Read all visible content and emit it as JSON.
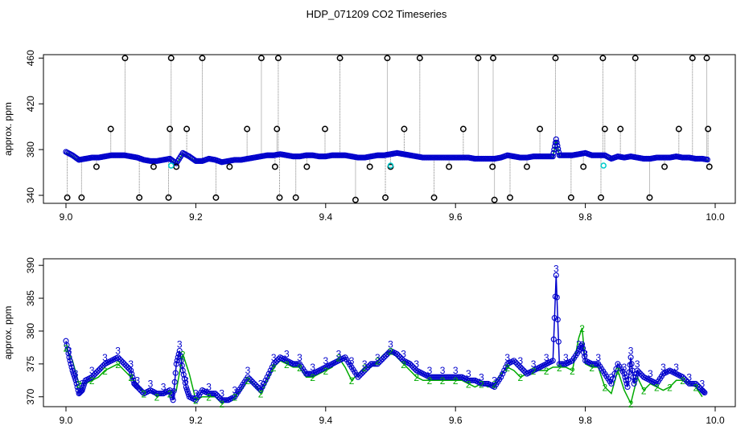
{
  "title": "HDP_071209  CO2 Timeseries",
  "colors": {
    "raw": "#000000",
    "series_blue": "#0000cc",
    "series_green": "#00aa00",
    "series_cyan": "#00cccc",
    "line_gray": "#808080"
  },
  "chart_data": [
    {
      "type": "scatter",
      "ylabel": "approx. ppm",
      "xlim": [
        9.0,
        10.0
      ],
      "ylim": [
        333,
        463
      ],
      "x_ticks": [
        "9.0",
        "9.2",
        "9.4",
        "9.6",
        "9.8",
        "10.0"
      ],
      "y_ticks": [
        "340",
        "380",
        "420",
        "460"
      ],
      "x_tick_values": [
        9.0,
        9.2,
        9.4,
        9.6,
        9.8,
        10.0
      ],
      "y_tick_values": [
        340,
        380,
        420,
        460
      ],
      "outliers_x": [
        9.002,
        9.024,
        9.047,
        9.069,
        9.091,
        9.113,
        9.135,
        9.158,
        9.16,
        9.162,
        9.17,
        9.186,
        9.21,
        9.231,
        9.252,
        9.279,
        9.301,
        9.322,
        9.325,
        9.327,
        9.329,
        9.354,
        9.371,
        9.399,
        9.422,
        9.446,
        9.468,
        9.492,
        9.495,
        9.5,
        9.521,
        9.545,
        9.567,
        9.59,
        9.612,
        9.635,
        9.657,
        9.658,
        9.66,
        9.684,
        9.71,
        9.73,
        9.754,
        9.778,
        9.797,
        9.824,
        9.827,
        9.83,
        9.854,
        9.877,
        9.899,
        9.922,
        9.944,
        9.965,
        9.987,
        9.989,
        9.991
      ],
      "outliers_y": [
        338,
        338,
        365,
        398,
        460,
        338,
        365,
        338,
        398,
        460,
        365,
        398,
        460,
        338,
        365,
        398,
        460,
        365,
        398,
        460,
        338,
        338,
        365,
        398,
        460,
        336,
        365,
        338,
        460,
        365,
        398,
        460,
        338,
        365,
        398,
        460,
        365,
        460,
        336,
        338,
        365,
        398,
        460,
        338,
        365,
        338,
        460,
        398,
        398,
        460,
        338,
        365,
        398,
        460,
        460,
        398,
        365
      ],
      "series": [
        {
          "name": "",
          "x": [
            9.0,
            9.01,
            9.02,
            9.03,
            9.04,
            9.05,
            9.06,
            9.07,
            9.08,
            9.09,
            9.1,
            9.11,
            9.12,
            9.13,
            9.14,
            9.15,
            9.16,
            9.17,
            9.18,
            9.19,
            9.2,
            9.21,
            9.22,
            9.23,
            9.24,
            9.25,
            9.26,
            9.27,
            9.28,
            9.29,
            9.3,
            9.31,
            9.32,
            9.33,
            9.34,
            9.35,
            9.36,
            9.37,
            9.38,
            9.39,
            9.4,
            9.41,
            9.42,
            9.43,
            9.44,
            9.45,
            9.46,
            9.47,
            9.48,
            9.49,
            9.5,
            9.51,
            9.52,
            9.53,
            9.54,
            9.55,
            9.56,
            9.57,
            9.58,
            9.59,
            9.6,
            9.61,
            9.62,
            9.63,
            9.64,
            9.65,
            9.66,
            9.67,
            9.68,
            9.69,
            9.7,
            9.71,
            9.72,
            9.73,
            9.74,
            9.75,
            9.755,
            9.76,
            9.77,
            9.78,
            9.79,
            9.8,
            9.81,
            9.82,
            9.83,
            9.84,
            9.85,
            9.86,
            9.87,
            9.88,
            9.89,
            9.9,
            9.91,
            9.92,
            9.93,
            9.94,
            9.95,
            9.96,
            9.97,
            9.98,
            9.99
          ],
          "values": [
            378,
            375,
            371,
            372,
            373,
            373,
            374,
            375,
            375,
            375,
            374,
            373,
            371,
            370,
            370,
            371,
            372,
            368,
            377,
            374,
            370,
            370,
            372,
            371,
            369,
            370,
            371,
            371,
            372,
            373,
            374,
            375,
            375,
            376,
            375,
            374,
            374,
            375,
            375,
            374,
            374,
            375,
            375,
            375,
            374,
            373,
            373,
            374,
            375,
            375,
            376,
            377,
            376,
            375,
            374,
            373,
            373,
            373,
            373,
            373,
            373,
            373,
            373,
            372,
            372,
            372,
            372,
            373,
            375,
            374,
            373,
            373,
            374,
            374,
            374,
            374,
            389,
            375,
            375,
            375,
            376,
            377,
            375,
            375,
            375,
            372,
            374,
            373,
            374,
            373,
            372,
            372,
            373,
            373,
            373,
            374,
            373,
            373,
            372,
            372,
            371
          ]
        }
      ]
    },
    {
      "type": "scatter",
      "ylabel": "approx. ppm",
      "xlim": [
        9.0,
        10.0
      ],
      "ylim": [
        368.5,
        391
      ],
      "x_ticks": [
        "9.0",
        "9.2",
        "9.4",
        "9.6",
        "9.8",
        "10.0"
      ],
      "y_ticks": [
        "370",
        "375",
        "380",
        "385",
        "390"
      ],
      "x_tick_values": [
        9.0,
        9.2,
        9.4,
        9.6,
        9.8,
        10.0
      ],
      "y_tick_values": [
        370,
        375,
        380,
        385,
        390
      ],
      "series": [
        {
          "name": "",
          "marker": "3",
          "x": [
            9.0,
            9.005,
            9.01,
            9.015,
            9.02,
            9.025,
            9.03,
            9.04,
            9.05,
            9.06,
            9.07,
            9.08,
            9.09,
            9.1,
            9.105,
            9.11,
            9.12,
            9.13,
            9.14,
            9.15,
            9.16,
            9.165,
            9.17,
            9.175,
            9.18,
            9.185,
            9.19,
            9.2,
            9.21,
            9.22,
            9.23,
            9.24,
            9.25,
            9.26,
            9.27,
            9.28,
            9.29,
            9.3,
            9.31,
            9.32,
            9.33,
            9.34,
            9.35,
            9.36,
            9.37,
            9.38,
            9.39,
            9.4,
            9.41,
            9.42,
            9.43,
            9.44,
            9.45,
            9.46,
            9.47,
            9.48,
            9.49,
            9.5,
            9.51,
            9.52,
            9.53,
            9.54,
            9.55,
            9.56,
            9.57,
            9.58,
            9.59,
            9.6,
            9.61,
            9.62,
            9.63,
            9.64,
            9.65,
            9.66,
            9.67,
            9.68,
            9.69,
            9.7,
            9.71,
            9.72,
            9.73,
            9.74,
            9.75,
            9.755,
            9.76,
            9.77,
            9.78,
            9.79,
            9.795,
            9.8,
            9.81,
            9.82,
            9.83,
            9.84,
            9.85,
            9.86,
            9.865,
            9.87,
            9.875,
            9.88,
            9.89,
            9.9,
            9.91,
            9.92,
            9.93,
            9.94,
            9.95,
            9.96,
            9.97,
            9.98,
            9.985
          ],
          "values": [
            378.5,
            376,
            374,
            372.5,
            370.5,
            371,
            372.5,
            373,
            374,
            375,
            375.5,
            376,
            375,
            374,
            372,
            371.5,
            370.5,
            371,
            370.5,
            370.5,
            371,
            369.5,
            375,
            377,
            374,
            371.5,
            370,
            369.5,
            371,
            370.5,
            370.5,
            369.5,
            369.5,
            370,
            371.5,
            373,
            372,
            371,
            373,
            375,
            376,
            375.5,
            375,
            375,
            373.5,
            373.5,
            374,
            374.5,
            375,
            375.5,
            376,
            374.5,
            373,
            374,
            375,
            375,
            376,
            377,
            376.5,
            375.5,
            375,
            374,
            373.5,
            373,
            373,
            373,
            373,
            373,
            373,
            372.5,
            372.5,
            372,
            372,
            371.5,
            373,
            375,
            375.5,
            374.5,
            373.5,
            374,
            374.5,
            375,
            375.5,
            388.5,
            375,
            375,
            375.5,
            377,
            378,
            375.5,
            375,
            375,
            373.5,
            372,
            375,
            373.5,
            371.5,
            376,
            372,
            374,
            373,
            372.5,
            372,
            373.5,
            374,
            373.5,
            373,
            372,
            372,
            371,
            370.5
          ]
        },
        {
          "name": "",
          "marker": "2",
          "x": [
            9.0,
            9.01,
            9.02,
            9.03,
            9.04,
            9.05,
            9.06,
            9.07,
            9.08,
            9.09,
            9.1,
            9.11,
            9.12,
            9.13,
            9.14,
            9.15,
            9.16,
            9.17,
            9.18,
            9.19,
            9.2,
            9.21,
            9.22,
            9.23,
            9.24,
            9.25,
            9.26,
            9.27,
            9.28,
            9.29,
            9.3,
            9.31,
            9.32,
            9.33,
            9.34,
            9.35,
            9.36,
            9.37,
            9.38,
            9.39,
            9.4,
            9.41,
            9.42,
            9.43,
            9.44,
            9.45,
            9.46,
            9.47,
            9.48,
            9.49,
            9.5,
            9.51,
            9.52,
            9.53,
            9.54,
            9.55,
            9.56,
            9.57,
            9.58,
            9.59,
            9.6,
            9.61,
            9.62,
            9.63,
            9.64,
            9.65,
            9.66,
            9.67,
            9.68,
            9.69,
            9.7,
            9.71,
            9.72,
            9.73,
            9.74,
            9.75,
            9.76,
            9.77,
            9.78,
            9.79,
            9.795,
            9.8,
            9.81,
            9.82,
            9.83,
            9.84,
            9.85,
            9.86,
            9.87,
            9.88,
            9.89,
            9.9,
            9.91,
            9.92,
            9.93,
            9.94,
            9.95,
            9.96,
            9.97,
            9.98
          ],
          "values": [
            377.5,
            375.5,
            372,
            372,
            372.5,
            373,
            374,
            374.5,
            375,
            374,
            373,
            372,
            370.5,
            371,
            370,
            370.5,
            370.5,
            371,
            376.5,
            373.5,
            369.5,
            370,
            370,
            370,
            369,
            369.5,
            370,
            371,
            372.5,
            372,
            370.5,
            372.5,
            374.5,
            375.5,
            375,
            374.5,
            374.5,
            373,
            373,
            373.5,
            374,
            374.5,
            376,
            374.5,
            372.5,
            373.5,
            374.5,
            374.5,
            375.5,
            376.5,
            377,
            376,
            375,
            374,
            373,
            372.5,
            372.5,
            372.5,
            372.5,
            372.5,
            372.5,
            372.5,
            372,
            371.5,
            372,
            371.5,
            372,
            373.5,
            374.5,
            374,
            373,
            373.5,
            374,
            374,
            374,
            374.5,
            374.5,
            374.5,
            374,
            379,
            380.5,
            375,
            374.5,
            374.5,
            371.5,
            370.5,
            374,
            371,
            369,
            373,
            371,
            372,
            371.5,
            371,
            371.5,
            372.5,
            372.5,
            372,
            371.5,
            370
          ]
        }
      ]
    }
  ]
}
